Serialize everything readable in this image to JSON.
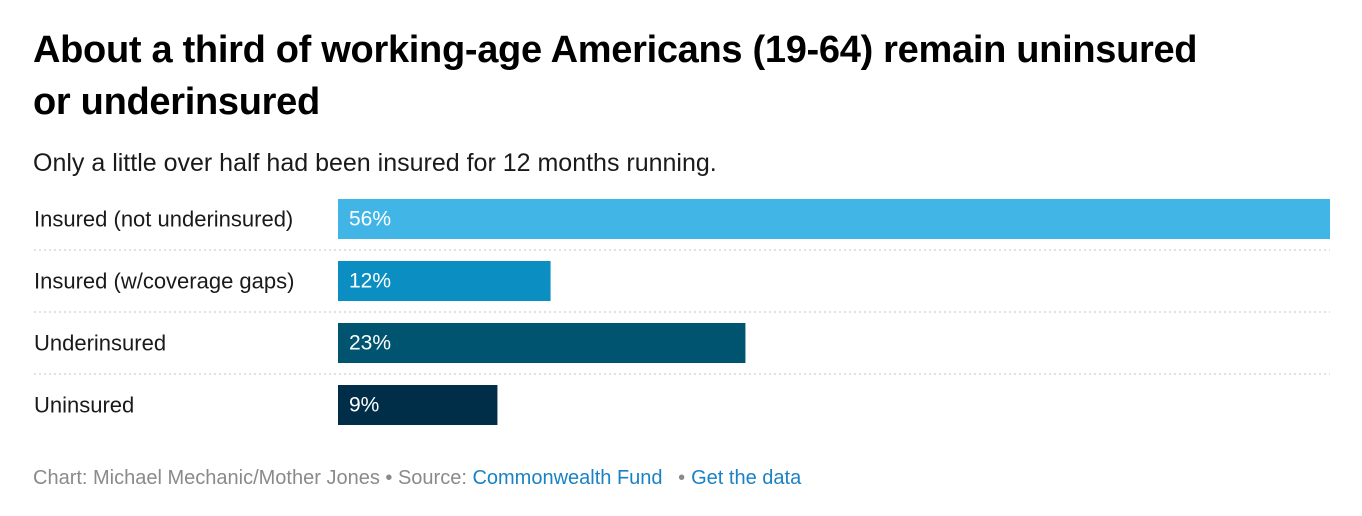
{
  "title": "About a third of working-age Americans (19-64) remain uninsured or underinsured",
  "subtitle": "Only a little over half had been insured for 12 months running.",
  "footer": {
    "credit": "Chart: Michael Mechanic/Mother Jones",
    "source_prefix": "• Source:",
    "source_link": "Commonwealth Fund",
    "separator": "•",
    "data_link": "Get the data"
  },
  "chart_data": {
    "type": "bar",
    "orientation": "horizontal",
    "categories": [
      "Insured (not underinsured)",
      "Insured (w/coverage gaps)",
      "Underinsured",
      "Uninsured"
    ],
    "values": [
      56,
      12,
      23,
      9
    ],
    "value_labels": [
      "56%",
      "12%",
      "23%",
      "9%"
    ],
    "colors": [
      "#41b6e6",
      "#0b8fc2",
      "#00546f",
      "#002d48"
    ],
    "xlim": [
      0,
      56
    ],
    "grid": "dotted row separators",
    "legend": "none"
  }
}
